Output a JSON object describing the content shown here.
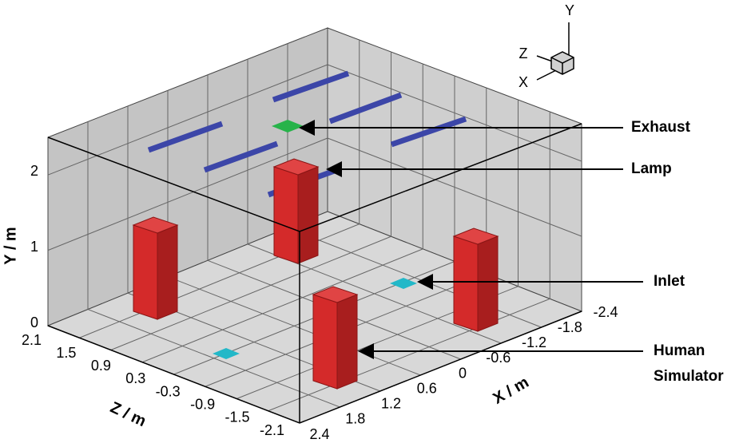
{
  "axes": {
    "y_title": "Y / m",
    "z_title": "Z / m",
    "x_title": "X / m",
    "y_ticks": [
      "0",
      "1",
      "2"
    ],
    "z_ticks": [
      "2.1",
      "1.5",
      "0.9",
      "0.3",
      "-0.3",
      "-0.9",
      "-1.5",
      "-2.1"
    ],
    "x_ticks": [
      "2.4",
      "1.8",
      "1.2",
      "0.6",
      "0",
      "-0.6",
      "-1.2",
      "-1.8",
      "-2.4"
    ]
  },
  "triad": {
    "y": "Y",
    "z": "Z",
    "x": "X"
  },
  "annotations": {
    "exhaust": "Exhaust",
    "lamp": "Lamp",
    "inlet": "Inlet",
    "human": [
      "Human",
      "Simulator"
    ]
  }
}
